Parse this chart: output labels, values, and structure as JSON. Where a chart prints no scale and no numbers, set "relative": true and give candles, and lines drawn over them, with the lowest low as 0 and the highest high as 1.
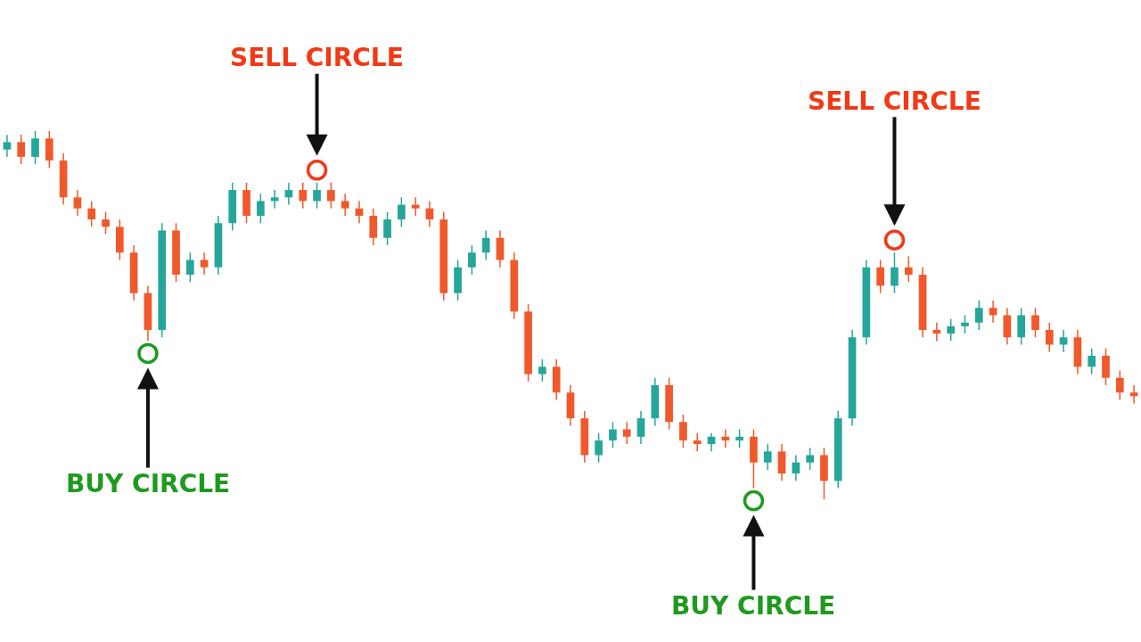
{
  "chart_data": {
    "type": "candlestick",
    "relative": true,
    "categories": [
      null,
      null,
      null,
      null,
      null,
      null,
      null,
      null,
      null,
      null,
      null,
      null,
      null,
      null,
      null,
      null,
      null,
      null,
      null,
      null,
      null,
      null,
      null,
      null,
      null,
      null,
      null,
      null,
      null,
      null,
      null,
      null,
      null,
      null,
      null,
      null,
      null,
      null,
      null,
      null,
      null,
      null,
      null,
      null,
      null,
      null,
      null,
      null,
      null,
      null,
      null,
      null,
      null,
      null,
      null,
      null,
      null,
      null,
      null,
      null,
      null,
      null,
      null,
      null,
      null,
      null,
      null,
      null,
      null,
      null,
      null,
      null,
      null,
      null,
      null,
      null,
      null,
      null,
      null,
      null,
      null
    ],
    "ohlc": [
      [
        0.95,
        0.99,
        0.93,
        0.97
      ],
      [
        0.97,
        0.99,
        0.91,
        0.93
      ],
      [
        0.93,
        1.0,
        0.91,
        0.98
      ],
      [
        0.98,
        1.0,
        0.9,
        0.92
      ],
      [
        0.92,
        0.94,
        0.8,
        0.82
      ],
      [
        0.82,
        0.84,
        0.77,
        0.79
      ],
      [
        0.79,
        0.81,
        0.74,
        0.76
      ],
      [
        0.76,
        0.78,
        0.72,
        0.74
      ],
      [
        0.74,
        0.76,
        0.65,
        0.67
      ],
      [
        0.67,
        0.69,
        0.54,
        0.56
      ],
      [
        0.56,
        0.58,
        0.43,
        0.46
      ],
      [
        0.46,
        0.75,
        0.44,
        0.73
      ],
      [
        0.73,
        0.75,
        0.59,
        0.61
      ],
      [
        0.61,
        0.67,
        0.59,
        0.65
      ],
      [
        0.65,
        0.67,
        0.61,
        0.63
      ],
      [
        0.63,
        0.77,
        0.61,
        0.75
      ],
      [
        0.75,
        0.86,
        0.73,
        0.84
      ],
      [
        0.84,
        0.86,
        0.75,
        0.77
      ],
      [
        0.77,
        0.83,
        0.75,
        0.81
      ],
      [
        0.81,
        0.84,
        0.79,
        0.82
      ],
      [
        0.82,
        0.86,
        0.8,
        0.84
      ],
      [
        0.84,
        0.86,
        0.79,
        0.81
      ],
      [
        0.81,
        0.86,
        0.79,
        0.84
      ],
      [
        0.84,
        0.86,
        0.79,
        0.81
      ],
      [
        0.81,
        0.83,
        0.77,
        0.79
      ],
      [
        0.79,
        0.81,
        0.75,
        0.77
      ],
      [
        0.77,
        0.79,
        0.69,
        0.71
      ],
      [
        0.71,
        0.78,
        0.69,
        0.76
      ],
      [
        0.76,
        0.82,
        0.74,
        0.8
      ],
      [
        0.8,
        0.82,
        0.77,
        0.79
      ],
      [
        0.79,
        0.81,
        0.74,
        0.76
      ],
      [
        0.76,
        0.78,
        0.54,
        0.56
      ],
      [
        0.56,
        0.65,
        0.54,
        0.63
      ],
      [
        0.63,
        0.69,
        0.61,
        0.67
      ],
      [
        0.67,
        0.73,
        0.65,
        0.71
      ],
      [
        0.71,
        0.73,
        0.63,
        0.65
      ],
      [
        0.65,
        0.67,
        0.49,
        0.51
      ],
      [
        0.51,
        0.53,
        0.32,
        0.34
      ],
      [
        0.34,
        0.38,
        0.32,
        0.36
      ],
      [
        0.36,
        0.38,
        0.27,
        0.29
      ],
      [
        0.29,
        0.31,
        0.2,
        0.22
      ],
      [
        0.22,
        0.24,
        0.1,
        0.12
      ],
      [
        0.12,
        0.18,
        0.1,
        0.16
      ],
      [
        0.16,
        0.21,
        0.14,
        0.19
      ],
      [
        0.19,
        0.21,
        0.15,
        0.17
      ],
      [
        0.17,
        0.24,
        0.15,
        0.22
      ],
      [
        0.22,
        0.33,
        0.2,
        0.31
      ],
      [
        0.31,
        0.33,
        0.19,
        0.21
      ],
      [
        0.21,
        0.23,
        0.14,
        0.16
      ],
      [
        0.16,
        0.18,
        0.13,
        0.15
      ],
      [
        0.15,
        0.18,
        0.13,
        0.17
      ],
      [
        0.17,
        0.19,
        0.14,
        0.16
      ],
      [
        0.16,
        0.19,
        0.14,
        0.17
      ],
      [
        0.17,
        0.19,
        0.03,
        0.1
      ],
      [
        0.1,
        0.15,
        0.08,
        0.13
      ],
      [
        0.13,
        0.15,
        0.05,
        0.07
      ],
      [
        0.07,
        0.12,
        0.05,
        0.1
      ],
      [
        0.1,
        0.14,
        0.08,
        0.12
      ],
      [
        0.12,
        0.14,
        0.0,
        0.05
      ],
      [
        0.05,
        0.24,
        0.03,
        0.22
      ],
      [
        0.22,
        0.46,
        0.2,
        0.44
      ],
      [
        0.44,
        0.65,
        0.42,
        0.63
      ],
      [
        0.63,
        0.65,
        0.56,
        0.58
      ],
      [
        0.58,
        0.67,
        0.56,
        0.63
      ],
      [
        0.63,
        0.66,
        0.59,
        0.61
      ],
      [
        0.61,
        0.63,
        0.44,
        0.46
      ],
      [
        0.46,
        0.48,
        0.43,
        0.45
      ],
      [
        0.45,
        0.49,
        0.43,
        0.47
      ],
      [
        0.47,
        0.5,
        0.45,
        0.48
      ],
      [
        0.48,
        0.54,
        0.46,
        0.52
      ],
      [
        0.52,
        0.54,
        0.48,
        0.5
      ],
      [
        0.5,
        0.52,
        0.42,
        0.44
      ],
      [
        0.44,
        0.52,
        0.42,
        0.5
      ],
      [
        0.5,
        0.52,
        0.44,
        0.46
      ],
      [
        0.46,
        0.48,
        0.4,
        0.42
      ],
      [
        0.42,
        0.46,
        0.4,
        0.44
      ],
      [
        0.44,
        0.46,
        0.34,
        0.36
      ],
      [
        0.36,
        0.41,
        0.34,
        0.39
      ],
      [
        0.39,
        0.41,
        0.31,
        0.33
      ],
      [
        0.33,
        0.35,
        0.27,
        0.29
      ],
      [
        0.29,
        0.31,
        0.26,
        0.28
      ]
    ],
    "annotations": [
      "SELL CIRCLE",
      "SELL CIRCLE",
      "BUY CIRCLE",
      "BUY CIRCLE"
    ]
  }
}
